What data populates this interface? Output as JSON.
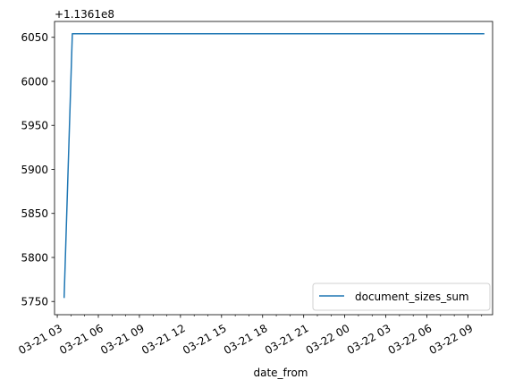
{
  "chart_data": {
    "type": "line",
    "xlabel": "date_from",
    "ylabel": "",
    "y_offset_label": "+1.1361e8",
    "x_tick_labels": [
      "03-21 03",
      "03-21 06",
      "03-21 09",
      "03-21 12",
      "03-21 15",
      "03-21 18",
      "03-21 21",
      "03-22 00",
      "03-22 03",
      "03-22 06",
      "03-22 09"
    ],
    "y_tick_labels": [
      "5750",
      "5800",
      "5850",
      "5900",
      "5950",
      "6000",
      "6050"
    ],
    "y_ticks": [
      5750,
      5800,
      5850,
      5900,
      5950,
      6000,
      6050
    ],
    "x_hours_range": [
      2.8,
      34.8
    ],
    "ylim": [
      5735,
      6068
    ],
    "series": [
      {
        "name": "document_sizes_sum",
        "color": "#1f77b4",
        "x_hours": [
          3.5,
          4.1,
          34.2
        ],
        "y": [
          5754,
          6054,
          6054
        ]
      }
    ],
    "legend_position": "lower right",
    "grid": false
  }
}
